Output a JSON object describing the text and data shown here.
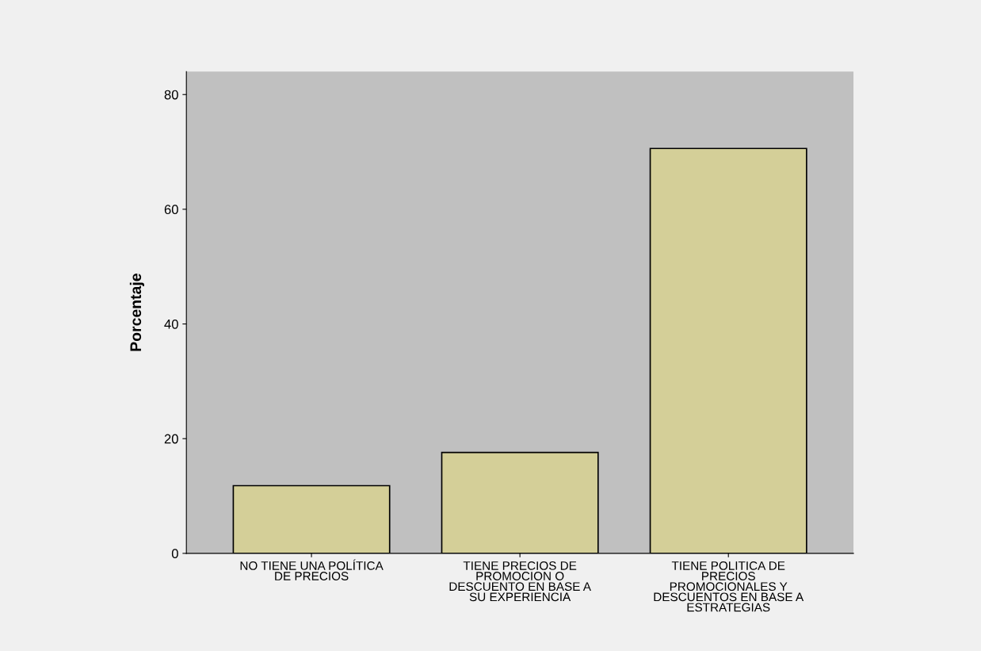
{
  "chart_data": {
    "type": "bar",
    "ylabel": "Porcentaje",
    "categories": [
      "NO TIENE UNA POLÍTICA\nDE PRECIOS",
      "TIENE PRECIOS DE\nPROMOCION O\nDESCUENTO EN BASE A\nSU EXPERIENCIA",
      "TIENE POLITICA DE\nPRECIOS\nPROMOCIONALES Y\nDESCUENTOS EN BASE A\nESTRATEGIAS"
    ],
    "values": [
      11.8,
      17.6,
      70.6
    ],
    "color": "#d4cf98",
    "ylim": [
      0,
      84
    ],
    "yticks": [
      0,
      20,
      40,
      60,
      80
    ],
    "grid": false,
    "legend": false
  }
}
